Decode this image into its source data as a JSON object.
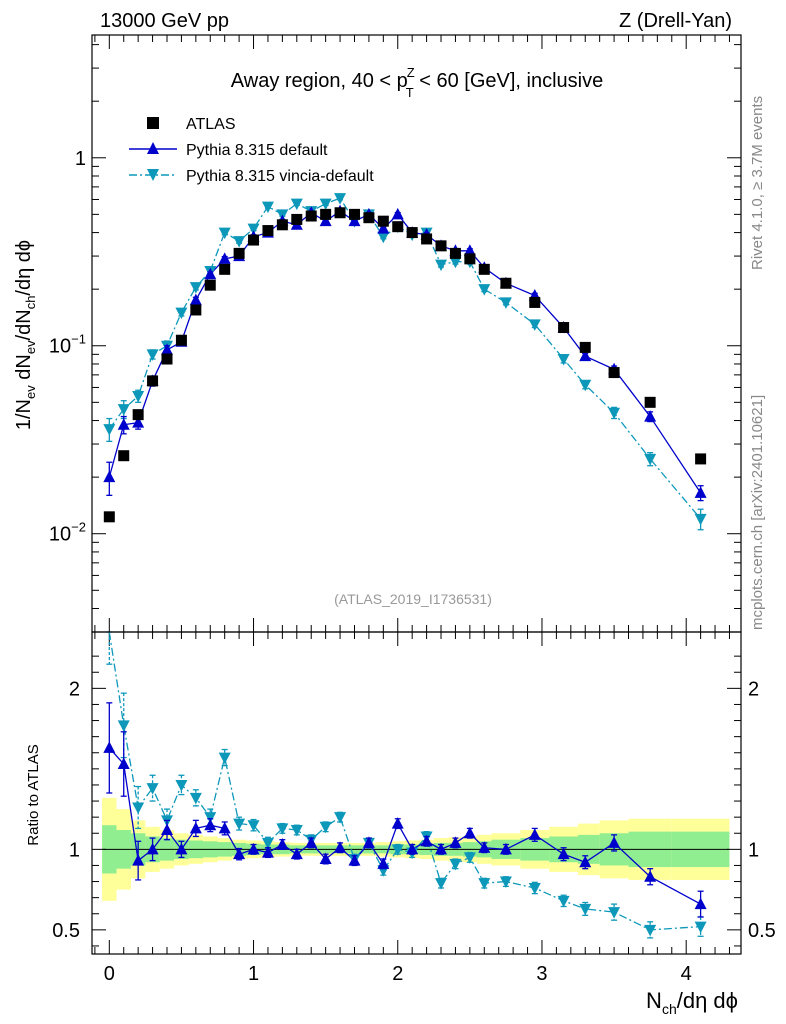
{
  "header": {
    "left": "13000 GeV pp",
    "right": "Z (Drell-Yan)"
  },
  "side_labels": {
    "rivet": "Rivet 4.1.0, ≥ 3.7M events",
    "mcplots": "mcplots.cern.ch [arXiv:2401.10621]"
  },
  "colors": {
    "atlas": "#000000",
    "pythia_default": "#0000cc",
    "pythia_vincia": "#0d98ba",
    "band_inner": "#90ee90",
    "band_outer": "#ffff99"
  },
  "chart_data": [
    {
      "type": "scatter",
      "panel": "main",
      "title": "Away region, 40 < p_T^Z < 60 [GeV], inclusive",
      "title_parts": {
        "pre": "Away region, 40 < p",
        "sup": "Z",
        "sub": "T",
        "post": " < 60 [GeV], inclusive"
      },
      "watermark": "(ATLAS_2019_I1736531)",
      "ylabel": "1/N_ev dN_ev/dN_ch/dη dϕ",
      "yscale": "log",
      "ylim": [
        0.003,
        4.5
      ],
      "xlim": [
        -0.12,
        4.38
      ],
      "ytick_labels": [
        "10^-2",
        "10^-1",
        "1"
      ],
      "legend": [
        "ATLAS",
        "Pythia 8.315 default",
        "Pythia 8.315 vincia-default"
      ],
      "legend_position": "top-left",
      "series": [
        {
          "name": "ATLAS",
          "marker": "square",
          "x": [
            0.0,
            0.1,
            0.2,
            0.3,
            0.4,
            0.5,
            0.6,
            0.7,
            0.8,
            0.9,
            1.0,
            1.1,
            1.2,
            1.3,
            1.4,
            1.5,
            1.6,
            1.7,
            1.8,
            1.9,
            2.0,
            2.1,
            2.2,
            2.3,
            2.4,
            2.5,
            2.6,
            2.75,
            2.95,
            3.15,
            3.3,
            3.5,
            3.75,
            4.1
          ],
          "values": [
            0.0123,
            0.026,
            0.043,
            0.065,
            0.085,
            0.107,
            0.155,
            0.21,
            0.255,
            0.31,
            0.365,
            0.41,
            0.44,
            0.47,
            0.49,
            0.5,
            0.51,
            0.5,
            0.48,
            0.46,
            0.43,
            0.4,
            0.37,
            0.34,
            0.31,
            0.29,
            0.255,
            0.215,
            0.17,
            0.125,
            0.098,
            0.072,
            0.05,
            0.025
          ]
        },
        {
          "name": "Pythia 8.315 default",
          "marker": "triangle-up",
          "line": "solid",
          "x": [
            0.0,
            0.1,
            0.2,
            0.3,
            0.4,
            0.5,
            0.6,
            0.7,
            0.8,
            0.9,
            1.0,
            1.1,
            1.2,
            1.3,
            1.4,
            1.5,
            1.6,
            1.7,
            1.8,
            1.9,
            2.0,
            2.1,
            2.2,
            2.3,
            2.4,
            2.5,
            2.6,
            2.75,
            2.95,
            3.15,
            3.3,
            3.5,
            3.75,
            4.1
          ],
          "values": [
            0.02,
            0.038,
            0.039,
            0.065,
            0.095,
            0.105,
            0.175,
            0.24,
            0.29,
            0.3,
            0.38,
            0.4,
            0.46,
            0.44,
            0.51,
            0.46,
            0.52,
            0.46,
            0.5,
            0.42,
            0.5,
            0.4,
            0.39,
            0.34,
            0.32,
            0.32,
            0.26,
            0.215,
            0.185,
            0.125,
            0.088,
            0.075,
            0.042,
            0.0165
          ],
          "errors": [
            0.004,
            0.004,
            0.003,
            0.004,
            0.005,
            0.005,
            0.006,
            0.007,
            0.008,
            0.008,
            0.009,
            0.009,
            0.01,
            0.01,
            0.011,
            0.01,
            0.011,
            0.01,
            0.011,
            0.01,
            0.011,
            0.01,
            0.009,
            0.008,
            0.008,
            0.008,
            0.007,
            0.006,
            0.005,
            0.004,
            0.003,
            0.003,
            0.0025,
            0.0015
          ]
        },
        {
          "name": "Pythia 8.315 vincia-default",
          "marker": "triangle-down",
          "line": "dash-dot",
          "x": [
            0.0,
            0.1,
            0.2,
            0.3,
            0.4,
            0.5,
            0.6,
            0.7,
            0.8,
            0.9,
            1.0,
            1.1,
            1.2,
            1.3,
            1.4,
            1.5,
            1.6,
            1.7,
            1.8,
            1.9,
            2.0,
            2.1,
            2.2,
            2.3,
            2.4,
            2.5,
            2.6,
            2.75,
            2.95,
            3.15,
            3.3,
            3.5,
            3.75,
            4.1
          ],
          "values": [
            0.036,
            0.046,
            0.054,
            0.09,
            0.1,
            0.15,
            0.205,
            0.25,
            0.4,
            0.36,
            0.42,
            0.55,
            0.5,
            0.57,
            0.52,
            0.57,
            0.61,
            0.46,
            0.5,
            0.38,
            0.43,
            0.39,
            0.4,
            0.27,
            0.28,
            0.28,
            0.2,
            0.17,
            0.13,
            0.085,
            0.062,
            0.044,
            0.025,
            0.012
          ],
          "errors": [
            0.005,
            0.005,
            0.004,
            0.005,
            0.006,
            0.006,
            0.007,
            0.008,
            0.01,
            0.009,
            0.01,
            0.011,
            0.011,
            0.011,
            0.011,
            0.011,
            0.012,
            0.01,
            0.011,
            0.009,
            0.01,
            0.009,
            0.009,
            0.008,
            0.008,
            0.008,
            0.006,
            0.005,
            0.005,
            0.004,
            0.003,
            0.003,
            0.002,
            0.0015
          ]
        }
      ]
    },
    {
      "type": "scatter",
      "panel": "ratio",
      "ylabel": "Ratio to ATLAS",
      "xlabel": "N_ch/dη dϕ",
      "ylim": [
        0.35,
        2.35
      ],
      "xlim": [
        -0.12,
        4.38
      ],
      "yticks": [
        0.5,
        1,
        2
      ],
      "ytick_labels": [
        "0.5",
        "1",
        "2"
      ],
      "xticks": [
        0,
        1,
        2,
        3,
        4
      ],
      "xtick_labels": [
        "0",
        "1",
        "2",
        "3",
        "4"
      ],
      "reference_line": 1,
      "bands": {
        "edges": [
          -0.05,
          0.05,
          0.15,
          0.25,
          0.35,
          0.45,
          0.55,
          0.65,
          0.75,
          0.85,
          0.95,
          1.05,
          1.15,
          1.25,
          1.35,
          1.45,
          1.55,
          1.65,
          1.75,
          1.85,
          1.95,
          2.05,
          2.15,
          2.25,
          2.35,
          2.45,
          2.55,
          2.65,
          2.85,
          3.05,
          3.25,
          3.4,
          3.6,
          3.9,
          4.3
        ],
        "inner": [
          0.15,
          0.12,
          0.1,
          0.08,
          0.07,
          0.06,
          0.055,
          0.05,
          0.045,
          0.04,
          0.035,
          0.03,
          0.03,
          0.025,
          0.025,
          0.025,
          0.025,
          0.025,
          0.025,
          0.025,
          0.03,
          0.03,
          0.035,
          0.04,
          0.04,
          0.045,
          0.05,
          0.06,
          0.07,
          0.08,
          0.09,
          0.1,
          0.11,
          0.11
        ],
        "outer": [
          0.32,
          0.25,
          0.18,
          0.14,
          0.12,
          0.1,
          0.09,
          0.08,
          0.07,
          0.06,
          0.055,
          0.05,
          0.045,
          0.04,
          0.04,
          0.04,
          0.04,
          0.04,
          0.04,
          0.045,
          0.05,
          0.055,
          0.06,
          0.07,
          0.075,
          0.08,
          0.09,
          0.1,
          0.12,
          0.14,
          0.16,
          0.18,
          0.19,
          0.19
        ]
      },
      "series": [
        {
          "name": "Pythia 8.315 default",
          "x": [
            0.0,
            0.1,
            0.2,
            0.3,
            0.4,
            0.5,
            0.6,
            0.7,
            0.8,
            0.9,
            1.0,
            1.1,
            1.2,
            1.3,
            1.4,
            1.5,
            1.6,
            1.7,
            1.8,
            1.9,
            2.0,
            2.1,
            2.2,
            2.3,
            2.4,
            2.5,
            2.6,
            2.75,
            2.95,
            3.15,
            3.3,
            3.5,
            3.75,
            4.1
          ],
          "values": [
            1.63,
            1.53,
            0.93,
            1.0,
            1.12,
            1.0,
            1.13,
            1.15,
            1.13,
            0.97,
            1.0,
            0.98,
            1.03,
            0.97,
            1.04,
            0.94,
            1.01,
            0.93,
            1.04,
            0.91,
            1.16,
            1.0,
            1.05,
            1.0,
            1.04,
            1.1,
            1.01,
            1.0,
            1.09,
            0.97,
            0.92,
            1.04,
            0.83,
            0.66
          ],
          "errors": [
            0.28,
            0.2,
            0.12,
            0.07,
            0.06,
            0.05,
            0.05,
            0.04,
            0.04,
            0.035,
            0.03,
            0.03,
            0.03,
            0.03,
            0.03,
            0.03,
            0.03,
            0.03,
            0.03,
            0.03,
            0.03,
            0.03,
            0.03,
            0.03,
            0.03,
            0.03,
            0.03,
            0.03,
            0.04,
            0.04,
            0.04,
            0.05,
            0.05,
            0.08
          ]
        },
        {
          "name": "Pythia 8.315 vincia-default",
          "x": [
            0.0,
            0.1,
            0.2,
            0.3,
            0.4,
            0.5,
            0.6,
            0.7,
            0.8,
            0.9,
            1.0,
            1.1,
            1.2,
            1.3,
            1.4,
            1.5,
            1.6,
            1.7,
            1.8,
            1.9,
            2.0,
            2.1,
            2.2,
            2.3,
            2.4,
            2.5,
            2.6,
            2.75,
            2.95,
            3.15,
            3.3,
            3.5,
            3.75,
            4.1
          ],
          "values": [
            2.4,
            1.77,
            1.26,
            1.38,
            1.18,
            1.4,
            1.32,
            1.2,
            1.57,
            1.16,
            1.15,
            1.04,
            1.13,
            1.12,
            1.06,
            1.14,
            1.2,
            0.94,
            1.04,
            0.87,
            1.0,
            0.98,
            1.08,
            0.79,
            0.91,
            0.95,
            0.79,
            0.8,
            0.76,
            0.68,
            0.63,
            0.61,
            0.5,
            0.52
          ],
          "errors": [
            0.25,
            0.2,
            0.13,
            0.08,
            0.07,
            0.06,
            0.05,
            0.05,
            0.05,
            0.04,
            0.035,
            0.035,
            0.03,
            0.03,
            0.03,
            0.03,
            0.03,
            0.03,
            0.03,
            0.03,
            0.03,
            0.03,
            0.03,
            0.03,
            0.03,
            0.03,
            0.03,
            0.03,
            0.035,
            0.035,
            0.04,
            0.05,
            0.05,
            0.06
          ]
        }
      ]
    }
  ]
}
